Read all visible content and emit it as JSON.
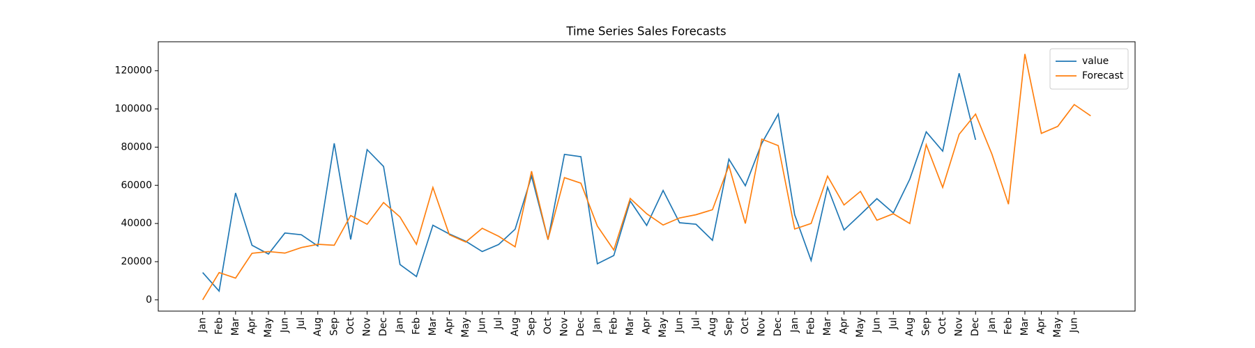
{
  "chart_data": {
    "type": "line",
    "title": "Time Series Sales Forecasts",
    "categories": [
      "Jan",
      "Feb",
      "Mar",
      "Apr",
      "May",
      "Jun",
      "Jul",
      "Aug",
      "Sep",
      "Oct",
      "Nov",
      "Dec",
      "Jan",
      "Feb",
      "Mar",
      "Apr",
      "May",
      "Jun",
      "Jul",
      "Aug",
      "Sep",
      "Oct",
      "Nov",
      "Dec",
      "Jan",
      "Feb",
      "Mar",
      "Apr",
      "May",
      "Jun",
      "Jul",
      "Aug",
      "Sep",
      "Oct",
      "Nov",
      "Dec",
      "Jan",
      "Feb",
      "Mar",
      "Apr",
      "May",
      "Jun",
      "Jul",
      "Aug",
      "Sep",
      "Oct",
      "Nov",
      "Dec",
      "Jan",
      "Feb",
      "Mar",
      "Apr",
      "May",
      "Jun",
      null
    ],
    "series": [
      {
        "name": "value",
        "color": "#1f77b4",
        "values": [
          14300,
          4600,
          56000,
          28600,
          24000,
          35000,
          34100,
          28200,
          82000,
          31600,
          78700,
          69900,
          18500,
          12200,
          39100,
          34500,
          30700,
          25300,
          29000,
          37000,
          64800,
          31500,
          76200,
          75000,
          18900,
          23200,
          51800,
          39000,
          57300,
          40400,
          39600,
          31200,
          73700,
          59800,
          82000,
          97300,
          44600,
          20600,
          59000,
          36600,
          44700,
          53000,
          45500,
          63200,
          88000,
          77900,
          118700,
          83800,
          null,
          null,
          null,
          null,
          null,
          null,
          null
        ]
      },
      {
        "name": "Forecast",
        "color": "#ff7f0e",
        "values": [
          0,
          14300,
          11400,
          24400,
          25300,
          24500,
          27400,
          29100,
          28600,
          44200,
          39600,
          51000,
          43400,
          29100,
          58900,
          34100,
          30300,
          37500,
          33300,
          27800,
          67400,
          31600,
          64000,
          61100,
          38700,
          26100,
          53100,
          45100,
          39200,
          42900,
          44600,
          47200,
          70300,
          40000,
          84200,
          80800,
          37100,
          40000,
          64800,
          49700,
          56800,
          41700,
          45100,
          40000,
          81300,
          58900,
          86700,
          97300,
          76200,
          50100,
          128800,
          87200,
          90900,
          102300,
          96400
        ]
      }
    ],
    "ylim": [
      -5900,
      135200
    ],
    "yticks": [
      0,
      20000,
      40000,
      60000,
      80000,
      100000,
      120000
    ],
    "legend": "upper right",
    "grid": false
  }
}
